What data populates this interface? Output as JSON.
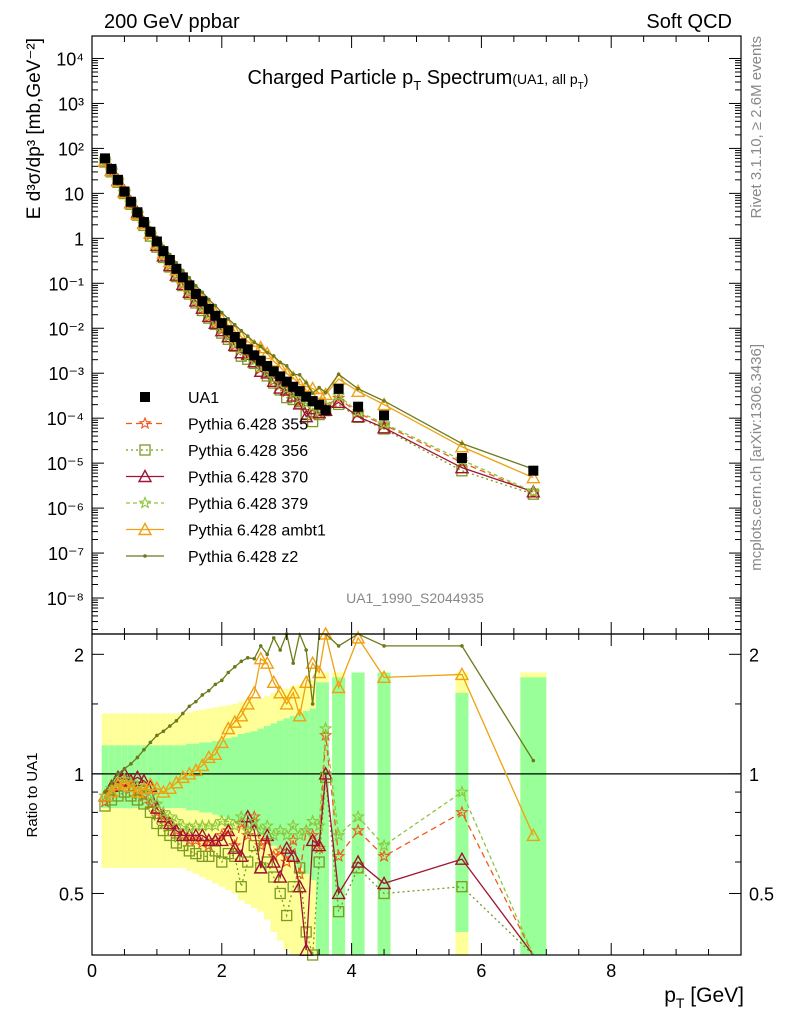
{
  "header": {
    "left": "200 GeV ppbar",
    "right": "Soft QCD",
    "side_top": "Rivet 3.1.10, ≥ 2.6M events",
    "side_bottom": "mcplots.cern.ch [arXiv:1306.3436]",
    "analysis_id": "UA1_1990_S2044935"
  },
  "chart_data": {
    "type": "scatter",
    "title": "Charged Particle p_T Spectrum (UA1, all p_T)",
    "title_main": "Charged Particle p",
    "title_main_sub": "T",
    "title_main_tail": " Spectrum",
    "title_note": "(UA1, all p",
    "title_note_sub": "T",
    "title_note_tail": ")",
    "xlabel": "p_T [GeV]",
    "xlabel_main": "p",
    "xlabel_sub": "T",
    "xlabel_tail": " [GeV]",
    "ylabel": "E d³σ/dp³ [mb,GeV⁻²]",
    "ylabel_ratio": "Ratio to UA1",
    "xlim": [
      0,
      10
    ],
    "ylim_log": [
      -8.8,
      4.5
    ],
    "ratio_ylim": [
      0.35,
      2.25
    ],
    "x_ticks": [
      "0",
      "2",
      "4",
      "6",
      "8"
    ],
    "y_ticks": [
      "10⁴",
      "10³",
      "10²",
      "10",
      "1",
      "10⁻¹",
      "10⁻²",
      "10⁻³",
      "10⁻⁴",
      "10⁻⁵",
      "10⁻⁶",
      "10⁻⁷",
      "10⁻⁸"
    ],
    "ratio_ticks": [
      "0.5",
      "1",
      "2"
    ],
    "data": {
      "name": "UA1",
      "x": [
        0.2,
        0.3,
        0.4,
        0.5,
        0.6,
        0.7,
        0.8,
        0.9,
        1.0,
        1.1,
        1.2,
        1.3,
        1.4,
        1.5,
        1.6,
        1.7,
        1.8,
        1.9,
        2.0,
        2.1,
        2.2,
        2.3,
        2.4,
        2.5,
        2.6,
        2.7,
        2.8,
        2.9,
        3.0,
        3.1,
        3.2,
        3.3,
        3.4,
        3.5,
        3.6,
        3.8,
        4.1,
        4.5,
        5.7,
        6.8
      ],
      "y": [
        60,
        35,
        20,
        11,
        6.5,
        3.8,
        2.3,
        1.4,
        0.85,
        0.52,
        0.33,
        0.21,
        0.135,
        0.09,
        0.058,
        0.04,
        0.027,
        0.019,
        0.013,
        0.009,
        0.0064,
        0.0046,
        0.0034,
        0.0025,
        0.0019,
        0.00145,
        0.0011,
        0.00085,
        0.00065,
        0.0005,
        0.0004,
        0.0003,
        0.00024,
        0.0002,
        0.00015,
        0.00045,
        0.00018,
        0.000115,
        1.3e-05,
        6.8e-06
      ],
      "band_stat": [
        0.18,
        0.18,
        0.18,
        0.18,
        0.18,
        0.18,
        0.18,
        0.18,
        0.18,
        0.18,
        0.18,
        0.18,
        0.18,
        0.19,
        0.19,
        0.2,
        0.2,
        0.21,
        0.22,
        0.23,
        0.24,
        0.26,
        0.27,
        0.28,
        0.3,
        0.32,
        0.34,
        0.36,
        0.38,
        0.4,
        0.42,
        0.44,
        0.46,
        0.7,
        0.7,
        0.75,
        0.8,
        0.8,
        0.6,
        0.75
      ],
      "band_total": [
        0.42,
        0.42,
        0.42,
        0.42,
        0.42,
        0.42,
        0.42,
        0.42,
        0.42,
        0.42,
        0.42,
        0.42,
        0.42,
        0.43,
        0.44,
        0.45,
        0.46,
        0.47,
        0.48,
        0.49,
        0.5,
        0.52,
        0.53,
        0.54,
        0.55,
        0.57,
        0.6,
        0.62,
        0.64,
        0.66,
        0.68,
        0.7,
        0.72,
        0.8,
        0.8,
        0.8,
        0.8,
        0.8,
        0.8,
        0.8
      ]
    },
    "series": [
      {
        "name": "Pythia 6.428 355",
        "color": "#ee5a1e",
        "marker": "star",
        "dash": "6,4",
        "x": [
          0.2,
          0.3,
          0.4,
          0.5,
          0.6,
          0.7,
          0.8,
          0.9,
          1.0,
          1.1,
          1.2,
          1.3,
          1.4,
          1.5,
          1.6,
          1.7,
          1.8,
          1.9,
          2.0,
          2.1,
          2.2,
          2.3,
          2.4,
          2.5,
          2.6,
          2.7,
          2.8,
          2.9,
          3.0,
          3.1,
          3.2,
          3.3,
          3.4,
          3.5,
          3.6,
          3.8,
          4.1,
          4.5,
          5.7,
          6.8
        ],
        "ratio": [
          0.85,
          0.9,
          0.93,
          0.95,
          0.92,
          0.9,
          0.88,
          0.84,
          0.8,
          0.77,
          0.74,
          0.72,
          0.7,
          0.68,
          0.68,
          0.67,
          0.66,
          0.68,
          0.7,
          0.72,
          0.66,
          0.75,
          0.7,
          0.78,
          0.66,
          0.68,
          0.62,
          0.64,
          0.6,
          0.68,
          0.56,
          0.72,
          0.7,
          0.65,
          1.25,
          0.62,
          0.72,
          0.62,
          0.8,
          0.32
        ]
      },
      {
        "name": "Pythia 6.428 356",
        "color": "#7a9a20",
        "marker": "square",
        "dash": "2,3",
        "x": [
          0.2,
          0.3,
          0.4,
          0.5,
          0.6,
          0.7,
          0.8,
          0.9,
          1.0,
          1.1,
          1.2,
          1.3,
          1.4,
          1.5,
          1.6,
          1.7,
          1.8,
          1.9,
          2.0,
          2.1,
          2.2,
          2.3,
          2.4,
          2.5,
          2.6,
          2.7,
          2.8,
          2.9,
          3.0,
          3.1,
          3.2,
          3.3,
          3.4,
          3.5,
          3.6,
          3.8,
          4.1,
          4.5,
          5.7,
          6.8
        ],
        "ratio": [
          0.83,
          0.86,
          0.88,
          0.9,
          0.88,
          0.86,
          0.84,
          0.8,
          0.75,
          0.72,
          0.7,
          0.67,
          0.66,
          0.64,
          0.63,
          0.62,
          0.62,
          0.64,
          0.6,
          0.63,
          0.62,
          0.52,
          0.6,
          0.66,
          0.58,
          0.6,
          0.55,
          0.5,
          0.44,
          0.52,
          0.58,
          0.4,
          0.35,
          0.6,
          0.98,
          0.45,
          0.58,
          0.5,
          0.52,
          0.3
        ]
      },
      {
        "name": "Pythia 6.428 370",
        "color": "#a01432",
        "marker": "triangle",
        "dash": "",
        "x": [
          0.2,
          0.3,
          0.4,
          0.5,
          0.6,
          0.7,
          0.8,
          0.9,
          1.0,
          1.1,
          1.2,
          1.3,
          1.4,
          1.5,
          1.6,
          1.7,
          1.8,
          1.9,
          2.0,
          2.1,
          2.2,
          2.3,
          2.4,
          2.5,
          2.6,
          2.7,
          2.8,
          2.9,
          3.0,
          3.1,
          3.2,
          3.3,
          3.4,
          3.5,
          3.6,
          3.8,
          4.1,
          4.5,
          5.7,
          6.8
        ],
        "ratio": [
          0.88,
          0.93,
          0.98,
          1.0,
          0.96,
          0.98,
          0.96,
          0.93,
          0.82,
          0.78,
          0.75,
          0.72,
          0.7,
          0.7,
          0.7,
          0.7,
          0.68,
          0.68,
          0.68,
          0.72,
          0.65,
          0.62,
          0.78,
          0.72,
          0.58,
          0.7,
          0.6,
          0.55,
          0.65,
          0.62,
          0.52,
          0.36,
          0.68,
          0.66,
          1.0,
          0.5,
          0.6,
          0.53,
          0.61,
          0.34
        ]
      },
      {
        "name": "Pythia 6.428 379",
        "color": "#8cc63c",
        "marker": "star",
        "dash": "4,3",
        "x": [
          0.2,
          0.3,
          0.4,
          0.5,
          0.6,
          0.7,
          0.8,
          0.9,
          1.0,
          1.1,
          1.2,
          1.3,
          1.4,
          1.5,
          1.6,
          1.7,
          1.8,
          1.9,
          2.0,
          2.1,
          2.2,
          2.3,
          2.4,
          2.5,
          2.6,
          2.7,
          2.8,
          2.9,
          3.0,
          3.1,
          3.2,
          3.3,
          3.4,
          3.5,
          3.6,
          3.8,
          4.1,
          4.5,
          5.7,
          6.8
        ],
        "ratio": [
          0.88,
          0.92,
          0.95,
          0.97,
          0.95,
          0.93,
          0.92,
          0.88,
          0.84,
          0.8,
          0.78,
          0.76,
          0.74,
          0.73,
          0.74,
          0.74,
          0.74,
          0.74,
          0.76,
          0.76,
          0.74,
          0.78,
          0.72,
          0.76,
          0.72,
          0.74,
          0.7,
          0.72,
          0.7,
          0.74,
          0.7,
          0.72,
          0.76,
          0.74,
          1.3,
          0.7,
          0.78,
          0.66,
          0.9,
          0.34
        ]
      },
      {
        "name": "Pythia 6.428 ambt1",
        "color": "#f0a010",
        "marker": "triangle",
        "dash": "",
        "x": [
          0.2,
          0.3,
          0.4,
          0.5,
          0.6,
          0.7,
          0.8,
          0.9,
          1.0,
          1.1,
          1.2,
          1.3,
          1.4,
          1.5,
          1.6,
          1.7,
          1.8,
          1.9,
          2.0,
          2.1,
          2.2,
          2.3,
          2.4,
          2.5,
          2.6,
          2.7,
          2.8,
          2.9,
          3.0,
          3.1,
          3.2,
          3.3,
          3.4,
          3.5,
          3.6,
          3.8,
          4.1,
          4.5,
          5.7,
          6.8
        ],
        "ratio": [
          0.88,
          0.9,
          0.94,
          0.95,
          0.93,
          0.9,
          0.92,
          0.94,
          0.92,
          0.9,
          0.92,
          0.95,
          0.98,
          1.0,
          1.02,
          1.05,
          1.1,
          1.12,
          1.2,
          1.3,
          1.35,
          1.4,
          1.5,
          1.6,
          1.95,
          1.9,
          1.7,
          1.6,
          1.5,
          1.6,
          1.4,
          1.7,
          1.9,
          1.8,
          2.25,
          1.65,
          2.2,
          1.75,
          1.78,
          0.7
        ]
      },
      {
        "name": "Pythia 6.428 z2",
        "color": "#6b7a1a",
        "marker": "dot",
        "dash": "",
        "x": [
          0.2,
          0.3,
          0.4,
          0.5,
          0.6,
          0.7,
          0.8,
          0.9,
          1.0,
          1.1,
          1.2,
          1.3,
          1.4,
          1.5,
          1.6,
          1.7,
          1.8,
          1.9,
          2.0,
          2.1,
          2.2,
          2.3,
          2.4,
          2.5,
          2.6,
          2.7,
          2.8,
          2.9,
          3.0,
          3.1,
          3.2,
          3.3,
          3.4,
          3.5,
          3.6,
          3.8,
          4.1,
          4.5,
          5.7,
          6.8
        ],
        "ratio": [
          0.9,
          0.95,
          1.0,
          1.03,
          1.06,
          1.1,
          1.15,
          1.2,
          1.25,
          1.28,
          1.32,
          1.36,
          1.42,
          1.48,
          1.52,
          1.58,
          1.62,
          1.68,
          1.72,
          1.8,
          1.86,
          1.92,
          1.96,
          1.95,
          2.1,
          2.0,
          2.2,
          2.05,
          2.25,
          1.9,
          2.3,
          2.05,
          1.5,
          2.4,
          2.5,
          2.1,
          2.5,
          2.1,
          2.1,
          1.08
        ]
      }
    ]
  }
}
